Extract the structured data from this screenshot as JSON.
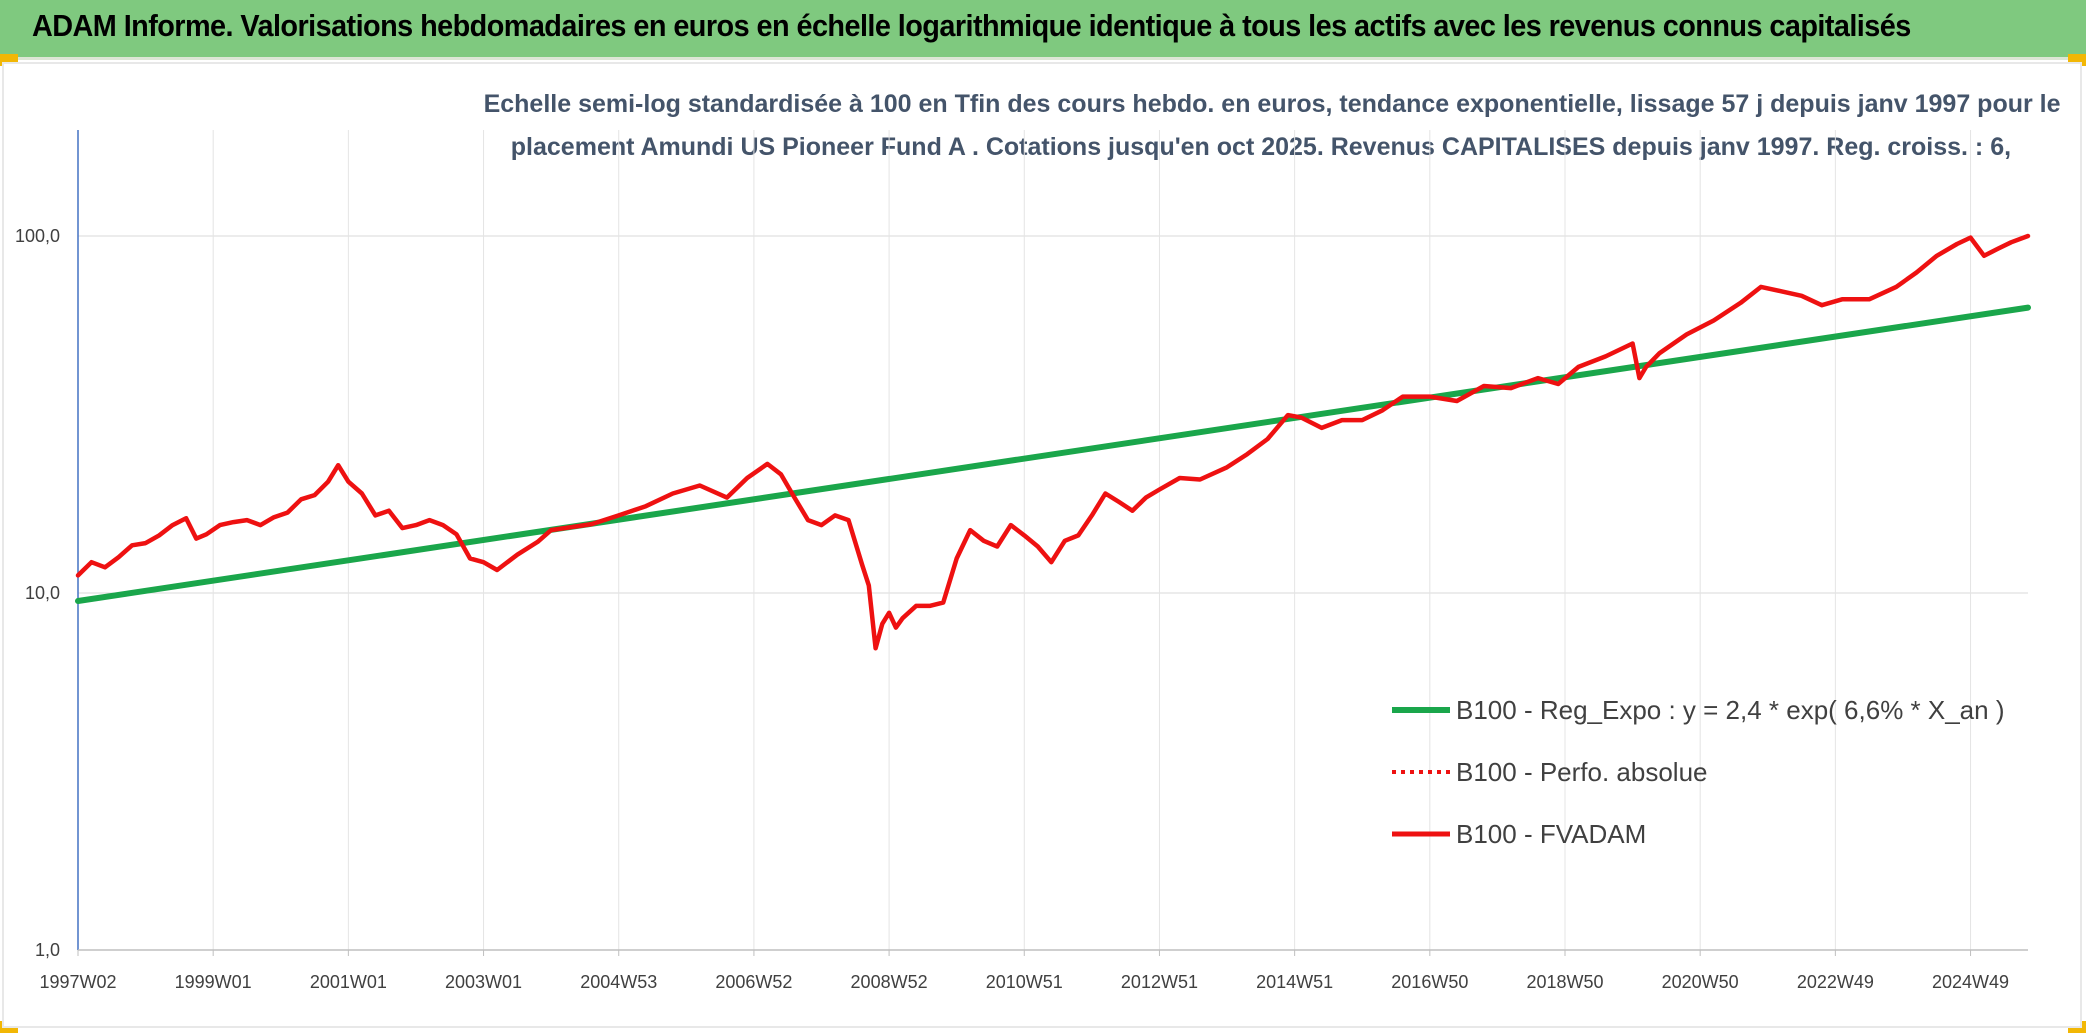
{
  "header": {
    "title": "ADAM Informe. Valorisations hebdomadaires en euros en échelle logarithmique identique à tous les actifs avec les revenus connus capitalisés"
  },
  "colors": {
    "banner": "#7fc97f",
    "regression": "#1aa64b",
    "fvadam": "#ee1111",
    "grid": "#d9d9d9",
    "subtitle": "#44546a"
  },
  "chart_data": {
    "type": "line",
    "scale": "log",
    "title_line1": "Echelle semi-log standardisée à 100 en Tfin des cours hebdo. en euros, tendance exponentielle, lissage 57 j depuis janv 1997 pour le",
    "title_line2": "placement Amundi US Pioneer Fund A . Cotations jusqu'en oct 2025. Revenus CAPITALISES depuis janv 1997. Reg. croiss. : 6,",
    "ylim": [
      1,
      100
    ],
    "y_ticks": [
      {
        "value": 1,
        "label": "1,0"
      },
      {
        "value": 10,
        "label": "10,0"
      },
      {
        "value": 100,
        "label": "100,0"
      }
    ],
    "x_ticks": [
      {
        "year": 1997.0,
        "label": "1997W02"
      },
      {
        "year": 1999.0,
        "label": "1999W01"
      },
      {
        "year": 2001.0,
        "label": "2001W01"
      },
      {
        "year": 2003.0,
        "label": "2003W01"
      },
      {
        "year": 2005.0,
        "label": "2004W53"
      },
      {
        "year": 2007.0,
        "label": "2006W52"
      },
      {
        "year": 2009.0,
        "label": "2008W52"
      },
      {
        "year": 2011.0,
        "label": "2010W51"
      },
      {
        "year": 2013.0,
        "label": "2012W51"
      },
      {
        "year": 2015.0,
        "label": "2014W51"
      },
      {
        "year": 2017.0,
        "label": "2016W50"
      },
      {
        "year": 2019.0,
        "label": "2018W50"
      },
      {
        "year": 2021.0,
        "label": "2020W50"
      },
      {
        "year": 2023.0,
        "label": "2022W49"
      },
      {
        "year": 2025.0,
        "label": "2024W49"
      }
    ],
    "xlim": [
      1997.0,
      2025.85
    ],
    "series": [
      {
        "name": "B100 - Reg_Expo : y = 2,4 * exp( 6,6% *  X_an )",
        "style": "solid-thick",
        "color": "#1aa64b",
        "x": [
          1997.0,
          2025.85
        ],
        "y": [
          9.5,
          63.0
        ]
      },
      {
        "name": "B100 - Perfo. absolue",
        "style": "dotted",
        "color": "#ee1111",
        "x": [],
        "y": []
      },
      {
        "name": "B100 - FVADAM",
        "style": "solid",
        "color": "#ee1111",
        "x": [
          1997.0,
          1997.2,
          1997.4,
          1997.6,
          1997.8,
          1998.0,
          1998.2,
          1998.4,
          1998.6,
          1998.75,
          1998.9,
          1999.1,
          1999.3,
          1999.5,
          1999.7,
          1999.9,
          2000.1,
          2000.3,
          2000.5,
          2000.7,
          2000.85,
          2001.0,
          2001.2,
          2001.4,
          2001.6,
          2001.8,
          2002.0,
          2002.2,
          2002.4,
          2002.6,
          2002.8,
          2003.0,
          2003.2,
          2003.5,
          2003.8,
          2004.0,
          2004.3,
          2004.6,
          2005.0,
          2005.4,
          2005.8,
          2006.2,
          2006.6,
          2006.9,
          2007.2,
          2007.4,
          2007.6,
          2007.8,
          2008.0,
          2008.2,
          2008.4,
          2008.6,
          2008.7,
          2008.8,
          2008.9,
          2009.0,
          2009.1,
          2009.2,
          2009.4,
          2009.6,
          2009.8,
          2010.0,
          2010.2,
          2010.4,
          2010.6,
          2010.8,
          2011.0,
          2011.2,
          2011.4,
          2011.6,
          2011.8,
          2012.0,
          2012.2,
          2012.4,
          2012.6,
          2012.8,
          2013.0,
          2013.3,
          2013.6,
          2014.0,
          2014.3,
          2014.6,
          2014.9,
          2015.1,
          2015.4,
          2015.7,
          2016.0,
          2016.3,
          2016.6,
          2017.0,
          2017.4,
          2017.8,
          2018.2,
          2018.6,
          2018.9,
          2019.2,
          2019.6,
          2020.0,
          2020.1,
          2020.2,
          2020.4,
          2020.8,
          2021.2,
          2021.6,
          2021.9,
          2022.2,
          2022.5,
          2022.8,
          2023.1,
          2023.5,
          2023.9,
          2024.2,
          2024.5,
          2024.8,
          2025.0,
          2025.2,
          2025.4,
          2025.6,
          2025.85
        ],
        "y": [
          11.2,
          12.2,
          11.8,
          12.6,
          13.6,
          13.8,
          14.5,
          15.5,
          16.2,
          14.2,
          14.6,
          15.5,
          15.8,
          16.0,
          15.5,
          16.3,
          16.8,
          18.3,
          18.8,
          20.5,
          22.8,
          20.5,
          19.0,
          16.5,
          17.0,
          15.2,
          15.5,
          16.0,
          15.5,
          14.6,
          12.5,
          12.2,
          11.6,
          12.8,
          13.9,
          15.0,
          15.3,
          15.6,
          16.5,
          17.5,
          19.0,
          20.0,
          18.5,
          21.0,
          23.0,
          21.5,
          18.5,
          16.0,
          15.5,
          16.5,
          16.0,
          12.0,
          10.5,
          7.0,
          8.2,
          8.8,
          8.0,
          8.5,
          9.2,
          9.2,
          9.4,
          12.5,
          15.0,
          14.0,
          13.5,
          15.5,
          14.5,
          13.5,
          12.2,
          14.0,
          14.5,
          16.5,
          19.0,
          18.0,
          17.0,
          18.5,
          19.5,
          21.0,
          20.8,
          22.5,
          24.5,
          27.0,
          31.5,
          31.0,
          29.0,
          30.5,
          30.5,
          32.5,
          35.5,
          35.5,
          34.5,
          38.0,
          37.5,
          40.0,
          38.5,
          43.0,
          46.0,
          50.0,
          40.0,
          43.0,
          47.0,
          53.0,
          58.0,
          65.0,
          72.0,
          70.0,
          68.0,
          64.0,
          66.5,
          66.5,
          72.0,
          79.0,
          88.0,
          95.0,
          99.0,
          88.0,
          92.0,
          96.0,
          100.0
        ]
      }
    ],
    "legend_position": "right-lower"
  }
}
